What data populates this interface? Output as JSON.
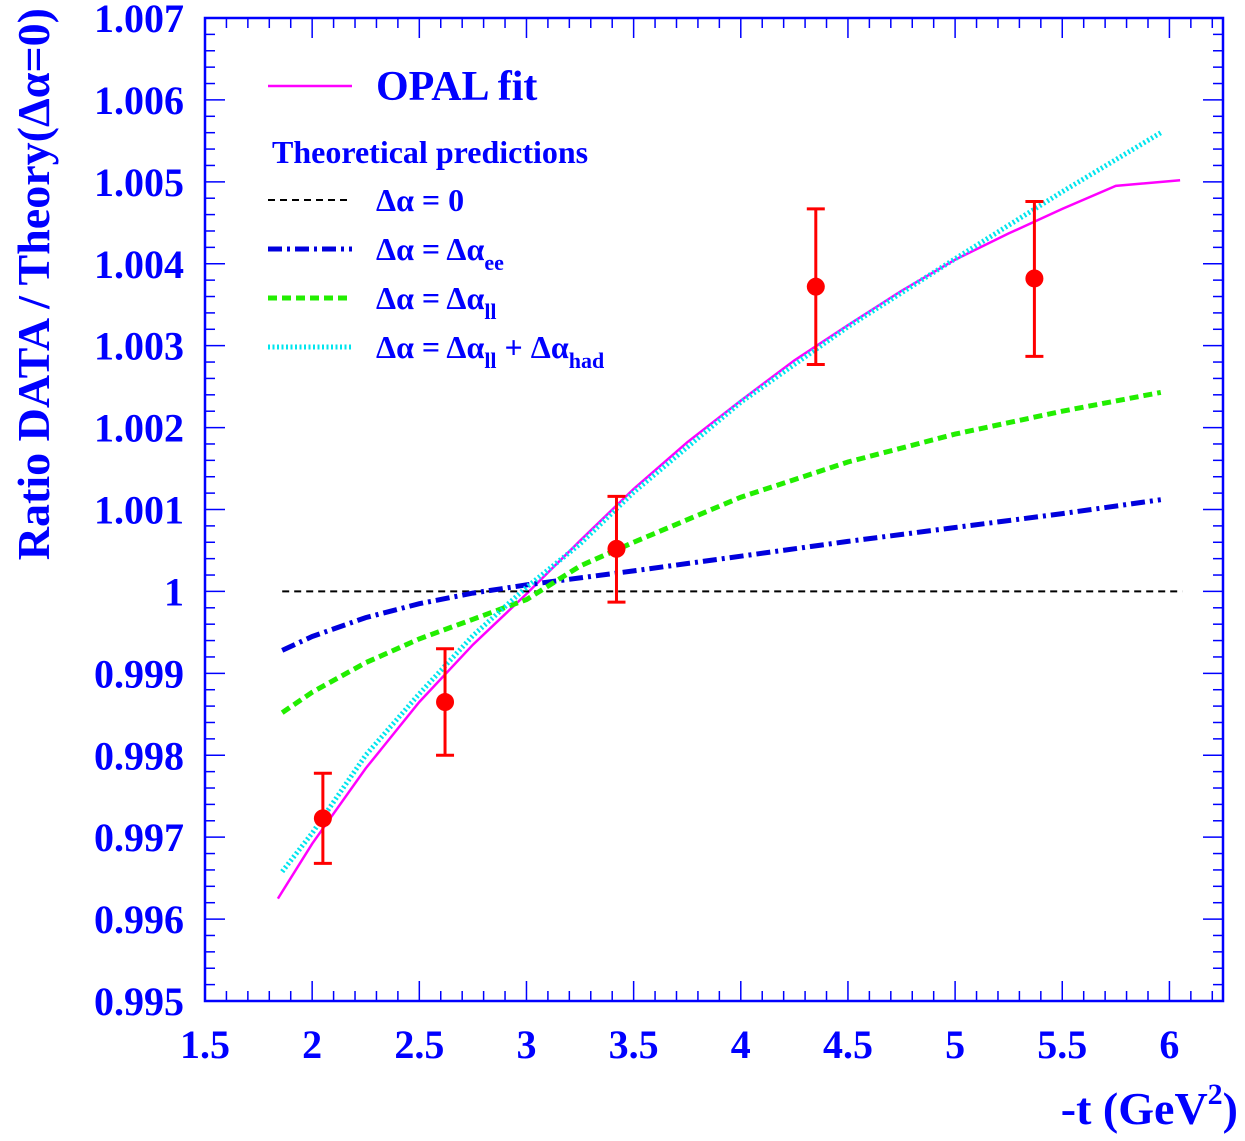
{
  "colors": {
    "axis": "#0000ff",
    "text": "#0000ff",
    "opal_fit": "#ff00ff",
    "no_running": "#000000",
    "ee": "#0000dd",
    "ll": "#22ee00",
    "ll_had": "#00e5ee",
    "data": "#ff0000"
  },
  "chart_data": {
    "type": "line",
    "xlabel_main": "-t (GeV",
    "xlabel_sup": "2",
    "xlabel_tail": ")",
    "ylabel": "Ratio DATA / Theory(Δα=0)",
    "xlim": [
      1.5,
      6.25
    ],
    "ylim": [
      0.995,
      1.007
    ],
    "x_ticks": [
      {
        "value": 1.5,
        "label": "1.5"
      },
      {
        "value": 2,
        "label": "2"
      },
      {
        "value": 2.5,
        "label": "2.5"
      },
      {
        "value": 3,
        "label": "3"
      },
      {
        "value": 3.5,
        "label": "3.5"
      },
      {
        "value": 4,
        "label": "4"
      },
      {
        "value": 4.5,
        "label": "4.5"
      },
      {
        "value": 5,
        "label": "5"
      },
      {
        "value": 5.5,
        "label": "5.5"
      },
      {
        "value": 6,
        "label": "6"
      }
    ],
    "y_ticks": [
      {
        "value": 0.995,
        "label": "0.995"
      },
      {
        "value": 0.996,
        "label": "0.996"
      },
      {
        "value": 0.997,
        "label": "0.997"
      },
      {
        "value": 0.998,
        "label": "0.998"
      },
      {
        "value": 0.999,
        "label": "0.999"
      },
      {
        "value": 1.0,
        "label": "1"
      },
      {
        "value": 1.001,
        "label": "1.001"
      },
      {
        "value": 1.002,
        "label": "1.002"
      },
      {
        "value": 1.003,
        "label": "1.003"
      },
      {
        "value": 1.004,
        "label": "1.004"
      },
      {
        "value": 1.005,
        "label": "1.005"
      },
      {
        "value": 1.006,
        "label": "1.006"
      },
      {
        "value": 1.007,
        "label": "1.007"
      }
    ],
    "legend_fit_label": "OPAL fit",
    "legend_heading": "Theoretical predictions",
    "series": [
      {
        "key": "opal_fit",
        "style": "solid",
        "x": [
          1.84,
          2.0,
          2.25,
          2.5,
          2.75,
          3.0,
          3.25,
          3.5,
          3.75,
          4.0,
          4.25,
          4.5,
          4.75,
          5.0,
          5.25,
          5.5,
          5.75,
          6.05
        ],
        "y": [
          0.99625,
          0.99692,
          0.99784,
          0.99865,
          0.99935,
          0.99997,
          1.00062,
          1.00125,
          1.00182,
          1.00233,
          1.00282,
          1.00325,
          1.00367,
          1.00405,
          1.00437,
          1.00467,
          1.00495,
          1.00502
        ]
      },
      {
        "key": "no_running",
        "style": "dashed-fine",
        "x": [
          1.86,
          6.06
        ],
        "y": [
          1.0,
          1.0
        ]
      },
      {
        "key": "ee",
        "style": "dashdot",
        "x": [
          1.86,
          2.0,
          2.25,
          2.5,
          2.75,
          3.0,
          3.5,
          4.0,
          4.5,
          5.0,
          5.5,
          5.96
        ],
        "y": [
          0.99928,
          0.99945,
          0.99968,
          0.99985,
          0.99998,
          1.00008,
          1.00025,
          1.00043,
          1.00061,
          1.00078,
          1.00095,
          1.00112
        ]
      },
      {
        "key": "ll",
        "style": "dashed-bold",
        "x": [
          1.86,
          2.0,
          2.25,
          2.5,
          2.75,
          3.0,
          3.25,
          3.5,
          4.0,
          4.5,
          5.0,
          5.5,
          5.96
        ],
        "y": [
          0.99852,
          0.99877,
          0.99913,
          0.99942,
          0.99966,
          0.9999,
          1.00031,
          1.0006,
          1.00115,
          1.00158,
          1.00192,
          1.0022,
          1.00243
        ]
      },
      {
        "key": "ll_had",
        "style": "dotted",
        "x": [
          1.86,
          2.0,
          2.25,
          2.5,
          2.75,
          3.0,
          3.25,
          3.5,
          4.0,
          4.5,
          5.0,
          5.5,
          5.96
        ],
        "y": [
          0.99658,
          0.99705,
          0.998,
          0.99875,
          0.99946,
          1.00005,
          1.00058,
          1.00121,
          1.00231,
          1.00323,
          1.00406,
          1.00488,
          1.0056
        ]
      }
    ],
    "legend_entries": [
      {
        "key": "no_running",
        "style": "dashed-fine",
        "parts": [
          {
            "t": "Δα = 0"
          }
        ]
      },
      {
        "key": "ee",
        "style": "dashdot",
        "parts": [
          {
            "t": "Δα = Δα"
          },
          {
            "t": "ee",
            "sub": true
          }
        ]
      },
      {
        "key": "ll",
        "style": "dashed-bold",
        "parts": [
          {
            "t": "Δα = Δα"
          },
          {
            "t": "ll",
            "sub": true
          }
        ]
      },
      {
        "key": "ll_had",
        "style": "dotted",
        "parts": [
          {
            "t": "Δα = Δα"
          },
          {
            "t": "ll",
            "sub": true
          },
          {
            "t": " + Δα"
          },
          {
            "t": "had",
            "sub": true
          }
        ]
      }
    ],
    "data_points": [
      {
        "x": 2.05,
        "y": 0.99723,
        "ylo": 0.99668,
        "yhi": 0.99778
      },
      {
        "x": 2.62,
        "y": 0.99865,
        "ylo": 0.998,
        "yhi": 0.9993
      },
      {
        "x": 3.42,
        "y": 1.00052,
        "ylo": 0.99987,
        "yhi": 1.00116
      },
      {
        "x": 4.35,
        "y": 1.00372,
        "ylo": 1.00277,
        "yhi": 1.00467
      },
      {
        "x": 5.37,
        "y": 1.00382,
        "ylo": 1.00287,
        "yhi": 1.00476
      }
    ]
  }
}
